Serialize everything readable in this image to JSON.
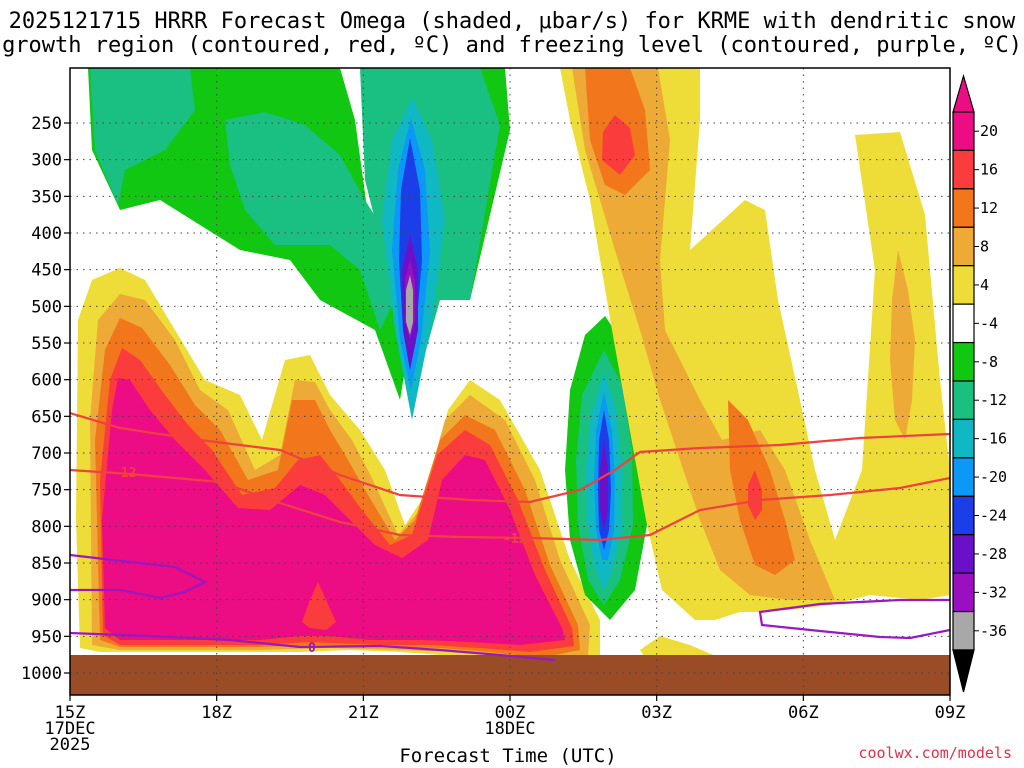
{
  "chart_data": {
    "type": "contour",
    "title_line1": "2025121715 HRRR Forecast Omega (shaded, μbar/s) for KRME with dendritic snow",
    "title_line2": "growth region (contoured, red, ºC) and freezing level (contoured, purple, ºC)",
    "xlabel": "Forecast Time (UTC)",
    "credit": "coolwx.com/models",
    "x_ticks": [
      {
        "hour": 0,
        "lines": [
          "15Z",
          "17DEC",
          "2025"
        ]
      },
      {
        "hour": 3,
        "lines": [
          "18Z"
        ]
      },
      {
        "hour": 6,
        "lines": [
          "21Z"
        ]
      },
      {
        "hour": 9,
        "lines": [
          "00Z",
          "18DEC"
        ]
      },
      {
        "hour": 12,
        "lines": [
          "03Z"
        ]
      },
      {
        "hour": 15,
        "lines": [
          "06Z"
        ]
      },
      {
        "hour": 18,
        "lines": [
          "09Z"
        ]
      }
    ],
    "y_ticks": [
      "250",
      "300",
      "350",
      "400",
      "450",
      "500",
      "550",
      "600",
      "650",
      "700",
      "750",
      "800",
      "850",
      "900",
      "950",
      "1000"
    ],
    "y_tick_values": [
      250,
      300,
      350,
      400,
      450,
      500,
      550,
      600,
      650,
      700,
      750,
      800,
      850,
      900,
      950,
      1000
    ],
    "x_range_hours": [
      0,
      18
    ],
    "y_range_hpa": [
      175,
      1030
    ],
    "colorbar_labels": [
      "20",
      "16",
      "12",
      "8",
      "4",
      "-4",
      "-8",
      "-12",
      "-16",
      "-20",
      "-24",
      "-28",
      "-32",
      "-36"
    ],
    "colorbar_colors": [
      "#ec0c84",
      "#fb3c3c",
      "#f2761c",
      "#eeaa36",
      "#eedc38",
      "#ffffff",
      "#11c712",
      "#1abf82",
      "#10b8c4",
      "#0c98f6",
      "#1c3ee8",
      "#6a10c8",
      "#9a10c0",
      "#a8a8a8"
    ],
    "contour_labels": [
      "-12",
      "-12",
      "0"
    ],
    "surface_color": "#9a4c26",
    "dgz_color": "#f04040",
    "freezing_color": "#9a18c0"
  }
}
